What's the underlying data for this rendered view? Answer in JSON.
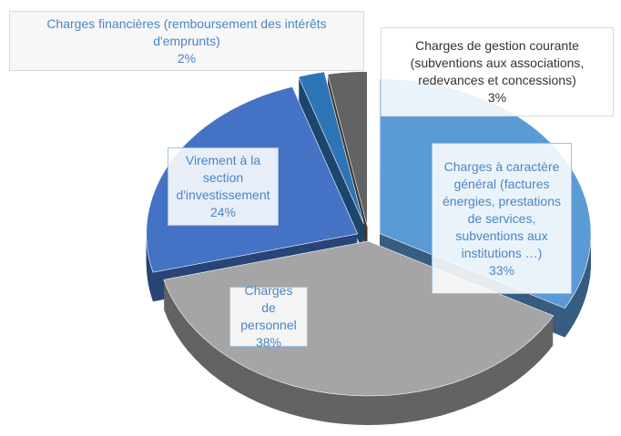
{
  "chart_data": {
    "type": "pie",
    "categories": [
      "Charges à caractère général (factures énergies, prestations de services, subventions aux institutions …)",
      "Charges de personnel",
      "Virement à la section d'investissement",
      "Charges financières (remboursement des intérêts d'emprunts)",
      "Charges de gestion courante (subventions aux associations, redevances et concessions)"
    ],
    "values": [
      33,
      38,
      24,
      2,
      3
    ],
    "value_labels": [
      "33%",
      "38%",
      "24%",
      "2%",
      "3%"
    ],
    "colors": [
      "#5b9bd5",
      "#a5a5a5",
      "#4472c4",
      "#2e75b6",
      "#636363"
    ]
  }
}
